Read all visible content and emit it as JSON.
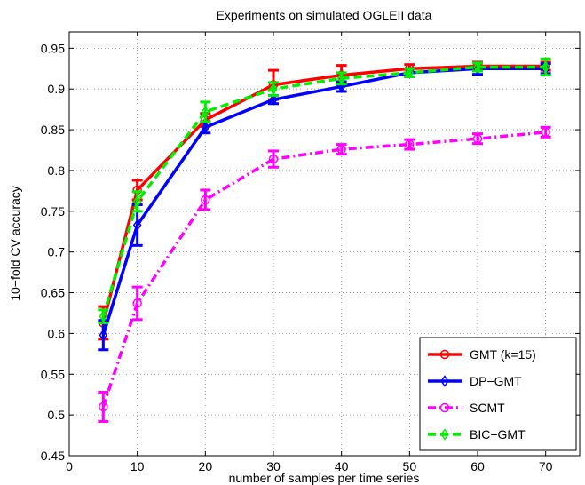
{
  "chart_data": {
    "type": "line",
    "title": "Experiments on simulated OGLEII data",
    "xlabel": "number of samples per time series",
    "ylabel": "10−fold CV accuracy",
    "xlim": [
      0,
      75
    ],
    "ylim": [
      0.45,
      0.97
    ],
    "xticks": [
      "0",
      "10",
      "20",
      "30",
      "40",
      "50",
      "60",
      "70"
    ],
    "yticks": [
      "0.45",
      "0.5",
      "0.55",
      "0.6",
      "0.65",
      "0.7",
      "0.75",
      "0.8",
      "0.85",
      "0.9",
      "0.95"
    ],
    "grid": true,
    "legend_position": "bottom-right",
    "x": [
      5,
      10,
      20,
      30,
      40,
      50,
      60,
      70
    ],
    "series": [
      {
        "name": "GMT (k=15)",
        "color": "#ff0000",
        "marker": "circle",
        "dash": "solid",
        "values": [
          0.613,
          0.776,
          0.862,
          0.905,
          0.917,
          0.925,
          0.928,
          0.928
        ],
        "errors": [
          0.02,
          0.012,
          0.008,
          0.018,
          0.012,
          0.005,
          0.005,
          0.005
        ]
      },
      {
        "name": "DP−GMT",
        "color": "#0000ff",
        "marker": "diamond",
        "dash": "solid",
        "values": [
          0.598,
          0.733,
          0.853,
          0.887,
          0.903,
          0.92,
          0.925,
          0.925
        ],
        "errors": [
          0.018,
          0.025,
          0.007,
          0.005,
          0.006,
          0.005,
          0.007,
          0.006
        ]
      },
      {
        "name": "SCMT",
        "color": "#ff00ff",
        "marker": "circle",
        "dash": "dashdot",
        "values": [
          0.51,
          0.637,
          0.764,
          0.814,
          0.826,
          0.832,
          0.839,
          0.847
        ],
        "errors": [
          0.018,
          0.02,
          0.012,
          0.01,
          0.006,
          0.006,
          0.006,
          0.006
        ]
      },
      {
        "name": "BIC−GMT",
        "color": "#00ee00",
        "marker": "diamond",
        "dash": "dashed",
        "values": [
          0.621,
          0.762,
          0.872,
          0.9,
          0.913,
          0.92,
          0.927,
          0.927
        ],
        "errors": [
          0.008,
          0.012,
          0.012,
          0.008,
          0.007,
          0.005,
          0.005,
          0.01
        ]
      }
    ]
  }
}
